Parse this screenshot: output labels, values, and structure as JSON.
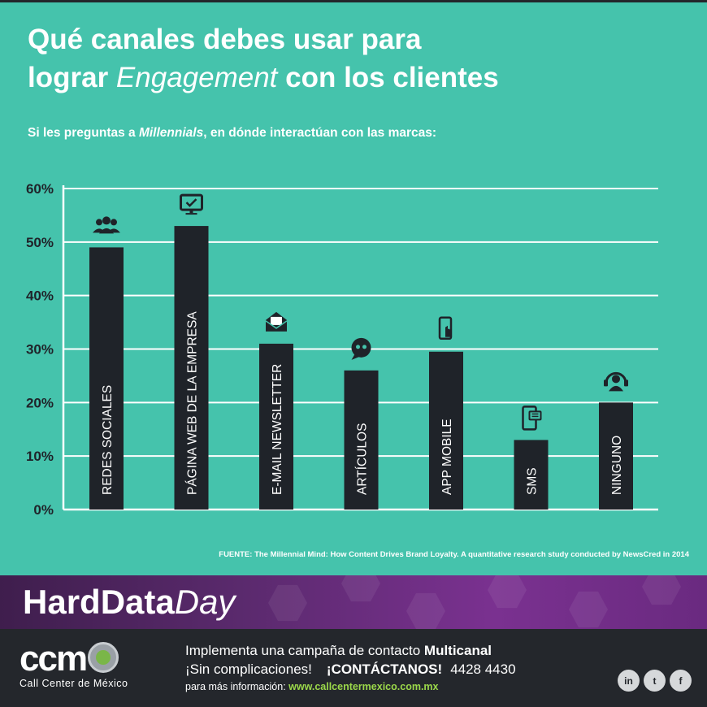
{
  "header": {
    "title_line1": "Qué canales debes usar para",
    "title_line2_pre": "lograr ",
    "title_line2_em": "Engagement",
    "title_line2_post": " con los clientes",
    "subtitle_pre": "Si les preguntas a ",
    "subtitle_em": "Millennials",
    "subtitle_post": ", en dónde interactúan con las marcas:"
  },
  "colors": {
    "background": "#45c3ac",
    "bar": "#1f2329",
    "text": "#ffffff",
    "axis_text": "#1f2329",
    "banner": "#5b2a6e",
    "link": "#9bd84a"
  },
  "chart_data": {
    "type": "bar",
    "categories": [
      "REDES SOCIALES",
      "PÁGINA WEB DE LA EMPRESA",
      "E-MAIL NEWSLETTER",
      "ARTÍCULOS",
      "APP MOBILE",
      "SMS",
      "NINGUNO"
    ],
    "values": [
      49,
      53,
      31,
      26,
      29.5,
      13,
      20
    ],
    "icons": [
      "people-icon",
      "monitor-icon",
      "envelope-icon",
      "quote-bubble-icon",
      "mobile-touch-icon",
      "sms-phone-icon",
      "headset-user-icon"
    ],
    "ylim": [
      0,
      60
    ],
    "yticks": [
      "0%",
      "10%",
      "20%",
      "30%",
      "40%",
      "50%",
      "60%"
    ],
    "grid": true,
    "value_labels_inside_bars": true
  },
  "source": "FUENTE: The Millennial Mind: How Content Drives Brand Loyalty. A quantitative research study  conducted by NewsCred in 2014",
  "banner": {
    "bold": "HardData",
    "italic": "Day"
  },
  "footer": {
    "logo_text": "ccm",
    "logo_subtitle": "Call Center de México",
    "line1_pre": "Implementa una campaña de contacto ",
    "line1_bold": "Multicanal",
    "line2_pre": "¡Sin complicaciones!",
    "line2_cta": "¡CONTÁCTANOS!",
    "line2_phone": "4428 4430",
    "line3_pre": "para más información: ",
    "line3_url": "www.callcentermexico.com.mx",
    "social": [
      {
        "icon": "linkedin-icon",
        "glyph": "in"
      },
      {
        "icon": "twitter-icon",
        "glyph": "t"
      },
      {
        "icon": "facebook-icon",
        "glyph": "f"
      }
    ]
  }
}
